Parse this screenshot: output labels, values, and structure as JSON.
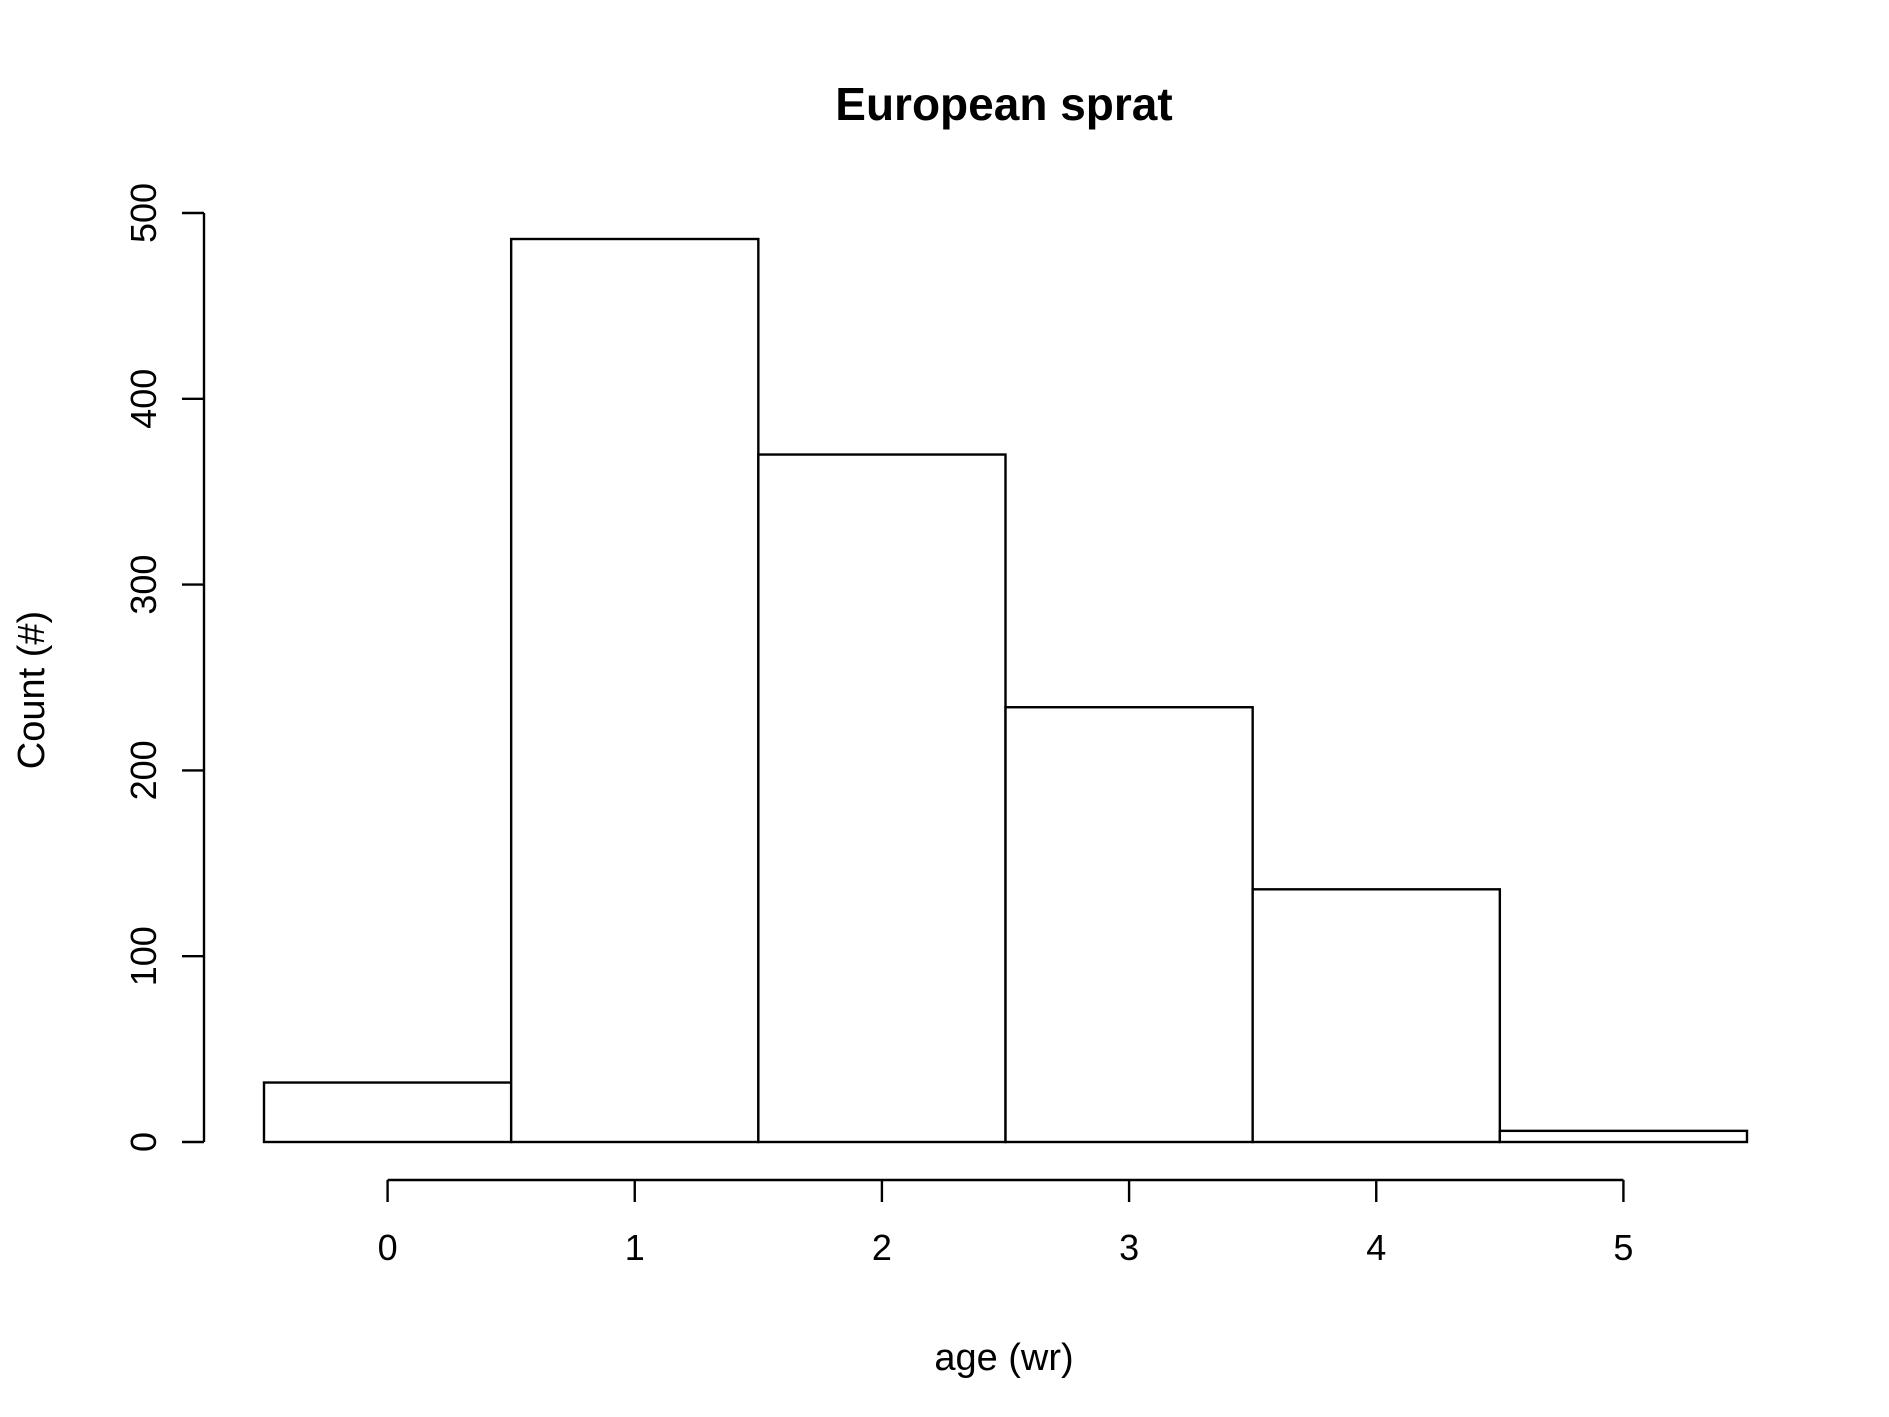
{
  "chart_data": {
    "type": "bar",
    "subtype": "histogram",
    "title": "European sprat",
    "xlabel": "age (wr)",
    "ylabel": "Count (#)",
    "categories": [
      "0",
      "1",
      "2",
      "3",
      "4",
      "5"
    ],
    "bin_edges": [
      -0.5,
      0.5,
      1.5,
      2.5,
      3.5,
      4.5,
      5.5
    ],
    "values": [
      32,
      486,
      370,
      234,
      136,
      6
    ],
    "xlim": [
      -0.5,
      5.5
    ],
    "ylim": [
      0,
      500
    ],
    "x_ticks": [
      0,
      1,
      2,
      3,
      4,
      5
    ],
    "y_ticks": [
      0,
      100,
      200,
      300,
      400,
      500
    ],
    "grid": false,
    "legend": "none",
    "bar_fill": "#ffffff",
    "bar_stroke": "#000000"
  }
}
